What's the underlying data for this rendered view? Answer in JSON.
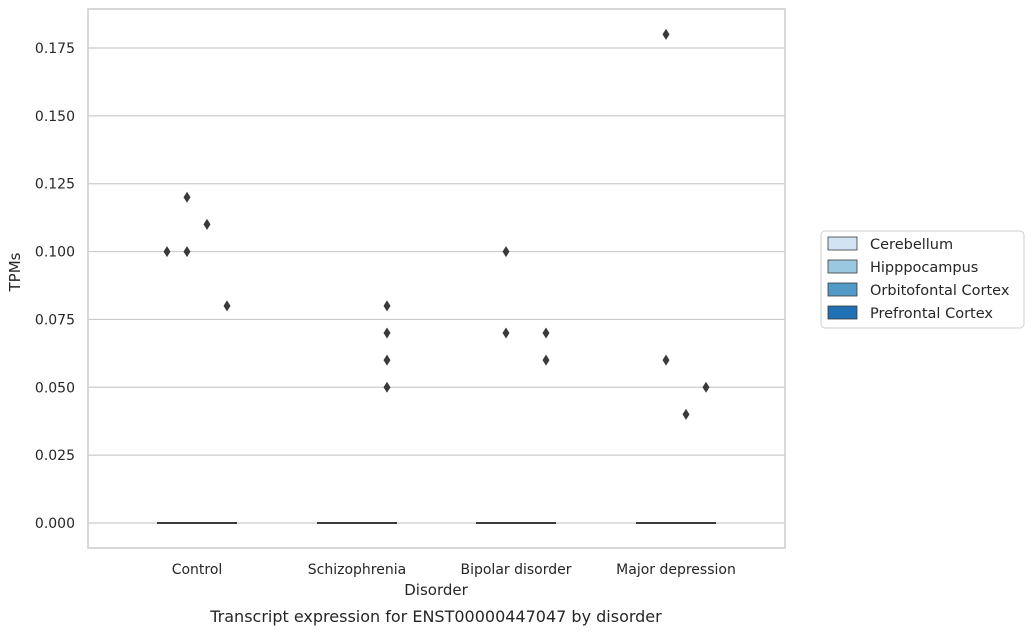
{
  "chart_data": {
    "type": "box",
    "title": "",
    "caption": "Transcript expression for ENST00000447047 by disorder",
    "xlabel": "Disorder",
    "ylabel": "TPMs",
    "ylim": [
      -0.009,
      0.189
    ],
    "yticks": [
      "0.000",
      "0.025",
      "0.050",
      "0.075",
      "0.100",
      "0.125",
      "0.150",
      "0.175"
    ],
    "ytick_values": [
      0,
      0.025,
      0.05,
      0.075,
      0.1,
      0.125,
      0.15,
      0.175
    ],
    "categories": [
      "Control",
      "Schizophrenia",
      "Bipolar disorder",
      "Major depression"
    ],
    "grid": "horizontal",
    "legend_position": "right",
    "series": [
      {
        "name": "Cerebellum",
        "color": "#d2e3f3",
        "median": [
          0,
          0,
          0,
          0
        ],
        "outliers": [
          [
            0.1
          ],
          [],
          [],
          []
        ]
      },
      {
        "name": "Hipppocampus",
        "color": "#9ac8e0",
        "median": [
          0,
          0,
          0,
          0
        ],
        "outliers": [
          [
            0.12,
            0.1
          ],
          [],
          [
            0.1,
            0.07
          ],
          [
            0.18,
            0.06
          ]
        ]
      },
      {
        "name": "Orbitofontal Cortex",
        "color": "#5399c7",
        "median": [
          0,
          0,
          0,
          0
        ],
        "outliers": [
          [
            0.11
          ],
          [],
          [],
          [
            0.04
          ]
        ]
      },
      {
        "name": "Prefrontal Cortex",
        "color": "#2070b4",
        "median": [
          0,
          0,
          0,
          0
        ],
        "outliers": [
          [
            0.08
          ],
          [
            0.05
          ],
          [
            0.07,
            0.06
          ],
          [
            0.05
          ]
        ]
      }
    ],
    "extra_outliers": [
      {
        "category_index": 1,
        "series_index": 3,
        "values": [
          0.08,
          0.07,
          0.06
        ]
      }
    ]
  }
}
